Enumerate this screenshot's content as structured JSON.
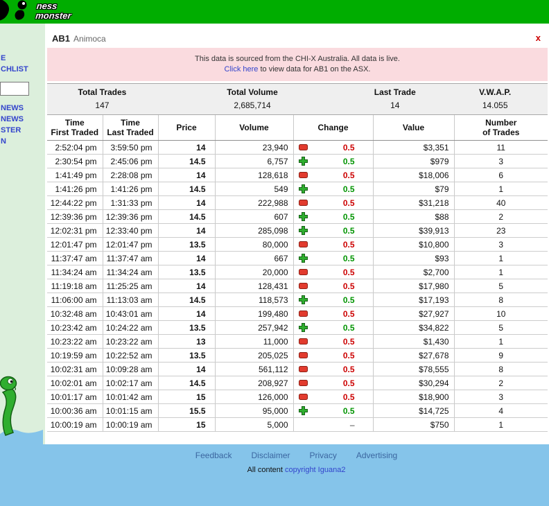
{
  "colors": {
    "green": "#00ad00",
    "mint": "#dcefdc",
    "footer-blue": "#85c4ea",
    "pink": "#fadbdf",
    "up": "#009400",
    "down": "#cc0000",
    "link": "#3344cc",
    "footer-link": "#3b66a0",
    "close": "#cc0000"
  },
  "header": {
    "logo_word1": "ness",
    "logo_word2": "monster"
  },
  "sidebar": {
    "items": [
      {
        "type": "link",
        "label": "E"
      },
      {
        "type": "link",
        "label": "CHLIST"
      },
      {
        "type": "input",
        "value": ""
      },
      {
        "type": "link",
        "label": "NEWS"
      },
      {
        "type": "link",
        "label": "NEWS"
      },
      {
        "type": "link",
        "label": "STER"
      },
      {
        "type": "link",
        "label": "N"
      }
    ]
  },
  "quote": {
    "code": "AB1",
    "name": "Animoca",
    "close_label": "x"
  },
  "notice": {
    "line1": "This data is sourced from the CHI-X Australia. All data is live.",
    "link_text": "Click here",
    "line2_rest": " to view data for AB1 on the ASX."
  },
  "summary": {
    "columns": [
      {
        "label": "Total Trades",
        "value": "147"
      },
      {
        "label": "Total Volume",
        "value": "2,685,714"
      },
      {
        "label": "Last Trade",
        "value": "14"
      },
      {
        "label": "V.W.A.P.",
        "value": "14.055"
      }
    ]
  },
  "table": {
    "headers": [
      {
        "lines": [
          "Time",
          "First Traded"
        ]
      },
      {
        "lines": [
          "Time",
          "Last Traded"
        ]
      },
      {
        "lines": [
          "Price"
        ]
      },
      {
        "lines": [
          "Volume"
        ]
      },
      {
        "lines": [
          "Change"
        ]
      },
      {
        "lines": [
          "Value"
        ]
      },
      {
        "lines": [
          "Number",
          "of Trades"
        ]
      }
    ],
    "rows": [
      {
        "first": "2:52:04 pm",
        "last": "3:59:50 pm",
        "price": "14",
        "volume": "23,940",
        "dir": "down",
        "change": "0.5",
        "value": "$3,351",
        "trades": "11"
      },
      {
        "first": "2:30:54 pm",
        "last": "2:45:06 pm",
        "price": "14.5",
        "volume": "6,757",
        "dir": "up",
        "change": "0.5",
        "value": "$979",
        "trades": "3"
      },
      {
        "first": "1:41:49 pm",
        "last": "2:28:08 pm",
        "price": "14",
        "volume": "128,618",
        "dir": "down",
        "change": "0.5",
        "value": "$18,006",
        "trades": "6"
      },
      {
        "first": "1:41:26 pm",
        "last": "1:41:26 pm",
        "price": "14.5",
        "volume": "549",
        "dir": "up",
        "change": "0.5",
        "value": "$79",
        "trades": "1"
      },
      {
        "first": "12:44:22 pm",
        "last": "1:31:33 pm",
        "price": "14",
        "volume": "222,988",
        "dir": "down",
        "change": "0.5",
        "value": "$31,218",
        "trades": "40"
      },
      {
        "first": "12:39:36 pm",
        "last": "12:39:36 pm",
        "price": "14.5",
        "volume": "607",
        "dir": "up",
        "change": "0.5",
        "value": "$88",
        "trades": "2"
      },
      {
        "first": "12:02:31 pm",
        "last": "12:33:40 pm",
        "price": "14",
        "volume": "285,098",
        "dir": "up",
        "change": "0.5",
        "value": "$39,913",
        "trades": "23"
      },
      {
        "first": "12:01:47 pm",
        "last": "12:01:47 pm",
        "price": "13.5",
        "volume": "80,000",
        "dir": "down",
        "change": "0.5",
        "value": "$10,800",
        "trades": "3"
      },
      {
        "first": "11:37:47 am",
        "last": "11:37:47 am",
        "price": "14",
        "volume": "667",
        "dir": "up",
        "change": "0.5",
        "value": "$93",
        "trades": "1"
      },
      {
        "first": "11:34:24 am",
        "last": "11:34:24 am",
        "price": "13.5",
        "volume": "20,000",
        "dir": "down",
        "change": "0.5",
        "value": "$2,700",
        "trades": "1"
      },
      {
        "first": "11:19:18 am",
        "last": "11:25:25 am",
        "price": "14",
        "volume": "128,431",
        "dir": "down",
        "change": "0.5",
        "value": "$17,980",
        "trades": "5"
      },
      {
        "first": "11:06:00 am",
        "last": "11:13:03 am",
        "price": "14.5",
        "volume": "118,573",
        "dir": "up",
        "change": "0.5",
        "value": "$17,193",
        "trades": "8"
      },
      {
        "first": "10:32:48 am",
        "last": "10:43:01 am",
        "price": "14",
        "volume": "199,480",
        "dir": "down",
        "change": "0.5",
        "value": "$27,927",
        "trades": "10"
      },
      {
        "first": "10:23:42 am",
        "last": "10:24:22 am",
        "price": "13.5",
        "volume": "257,942",
        "dir": "up",
        "change": "0.5",
        "value": "$34,822",
        "trades": "5"
      },
      {
        "first": "10:23:22 am",
        "last": "10:23:22 am",
        "price": "13",
        "volume": "11,000",
        "dir": "down",
        "change": "0.5",
        "value": "$1,430",
        "trades": "1"
      },
      {
        "first": "10:19:59 am",
        "last": "10:22:52 am",
        "price": "13.5",
        "volume": "205,025",
        "dir": "down",
        "change": "0.5",
        "value": "$27,678",
        "trades": "9"
      },
      {
        "first": "10:02:31 am",
        "last": "10:09:28 am",
        "price": "14",
        "volume": "561,112",
        "dir": "down",
        "change": "0.5",
        "value": "$78,555",
        "trades": "8"
      },
      {
        "first": "10:02:01 am",
        "last": "10:02:17 am",
        "price": "14.5",
        "volume": "208,927",
        "dir": "down",
        "change": "0.5",
        "value": "$30,294",
        "trades": "2"
      },
      {
        "first": "10:01:17 am",
        "last": "10:01:42 am",
        "price": "15",
        "volume": "126,000",
        "dir": "down",
        "change": "0.5",
        "value": "$18,900",
        "trades": "3"
      },
      {
        "first": "10:00:36 am",
        "last": "10:01:15 am",
        "price": "15.5",
        "volume": "95,000",
        "dir": "up",
        "change": "0.5",
        "value": "$14,725",
        "trades": "4"
      },
      {
        "first": "10:00:19 am",
        "last": "10:00:19 am",
        "price": "15",
        "volume": "5,000",
        "dir": "none",
        "change": "–",
        "value": "$750",
        "trades": "1"
      }
    ]
  },
  "footer": {
    "links": [
      "Feedback",
      "Disclaimer",
      "Privacy",
      "Advertising"
    ],
    "copyright_prefix": "All content ",
    "copyright_link": "copyright Iguana2"
  }
}
